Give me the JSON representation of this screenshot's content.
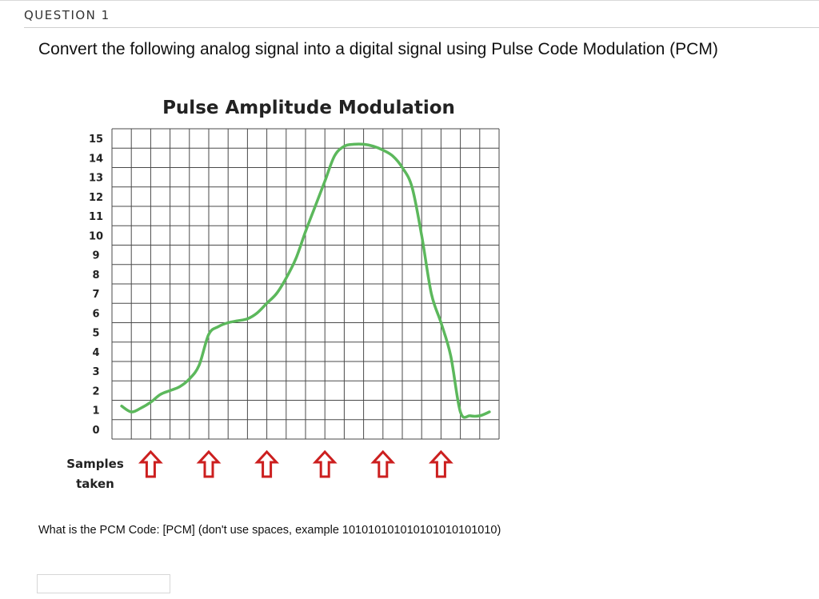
{
  "question": {
    "header": "QUESTION 1",
    "prompt": "Convert the following analog signal into a digital signal using Pulse Code Modulation (PCM)",
    "pcm_prompt": "What is the PCM Code:  [PCM] (don't use spaces, example 101010101010101010101010)",
    "answer_value": "",
    "answer_placeholder": ""
  },
  "colors": {
    "signal": "#5cb85c",
    "arrow": "#cc1f1f",
    "grid": "#4a4a4a"
  },
  "chart_data": {
    "type": "line",
    "title": "Pulse Amplitude Modulation",
    "xlabel": "",
    "ylabel": "",
    "y_ticks": [
      0,
      1,
      2,
      3,
      4,
      5,
      6,
      7,
      8,
      9,
      10,
      11,
      12,
      13,
      14,
      15
    ],
    "ylim": [
      0,
      15
    ],
    "x_range": [
      0,
      20
    ],
    "grid": true,
    "series": [
      {
        "x": [
          0.5,
          1,
          1.5,
          2,
          2.5,
          3,
          3.5,
          4,
          4.5,
          5,
          5.5,
          6,
          6.5,
          7,
          7.5,
          8,
          8.5,
          9,
          9.5,
          10,
          10.5,
          11,
          11.5,
          12,
          12.5,
          13,
          13.5,
          14,
          14.5,
          15,
          15.5,
          16,
          16.5,
          17,
          17.5,
          18,
          18.5,
          19,
          19.5
        ],
        "values": [
          1.2,
          0.9,
          1.1,
          1.4,
          1.8,
          2.0,
          2.2,
          2.6,
          3.3,
          4.9,
          5.3,
          5.5,
          5.6,
          5.7,
          6.0,
          6.5,
          7.0,
          7.8,
          8.8,
          10.2,
          11.5,
          12.8,
          14.1,
          14.6,
          14.7,
          14.7,
          14.6,
          14.4,
          14.1,
          13.5,
          12.5,
          10.0,
          7.0,
          5.5,
          3.8,
          0.9,
          0.7,
          0.7,
          0.9
        ]
      }
    ],
    "sample_label_line1": "Samples",
    "sample_label_line2": "taken",
    "sample_positions": [
      2,
      5,
      8,
      11,
      14,
      17
    ]
  }
}
